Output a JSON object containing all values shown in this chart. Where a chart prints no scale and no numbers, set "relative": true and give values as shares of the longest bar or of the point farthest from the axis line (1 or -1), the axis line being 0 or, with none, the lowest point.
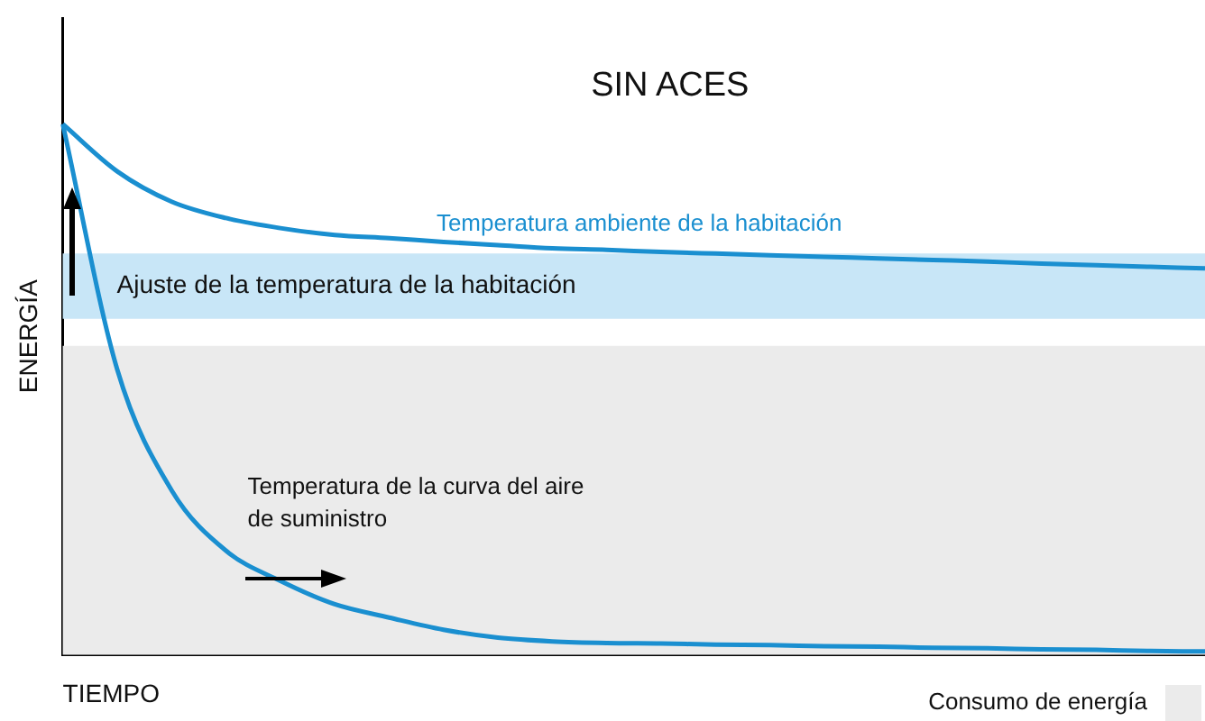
{
  "chart_data": {
    "type": "line",
    "title": "SIN ACES",
    "xlabel": "TIEMPO",
    "ylabel": "ENERGÍA",
    "relative": true,
    "legend": "bottom right",
    "marker": "none",
    "line_style": "solid",
    "grid": false,
    "categories": [
      null,
      null,
      null,
      null,
      null,
      null,
      null,
      null,
      null,
      null,
      null,
      null,
      null,
      null,
      null,
      null,
      null,
      null,
      null,
      null,
      null,
      null
    ],
    "series": [
      {
        "name": "Temperatura ambiente de la habitación",
        "color": "#1a8fd0",
        "values": [
          1.0,
          0.911,
          0.854,
          0.823,
          0.804,
          0.791,
          0.785,
          0.778,
          0.772,
          0.766,
          0.763,
          0.759,
          0.756,
          0.753,
          0.75,
          0.747,
          0.744,
          0.741,
          0.737,
          0.734,
          0.731,
          0.728
        ]
      },
      {
        "name": "Temperatura de la curva del aire de suministro",
        "color": "#1a8fd0",
        "values": [
          1.0,
          0.538,
          0.31,
          0.196,
          0.139,
          0.095,
          0.07,
          0.047,
          0.032,
          0.025,
          0.022,
          0.021,
          0.019,
          0.018,
          0.016,
          0.015,
          0.013,
          0.012,
          0.01,
          0.009,
          0.007,
          0.006
        ]
      }
    ],
    "bands": [
      {
        "axis": "y",
        "from": 0.633,
        "to": 0.756,
        "label": "Ajuste de la temperatura de la habitación",
        "color": "#c8e6f7"
      },
      {
        "axis": "y",
        "from": 0,
        "to": 0.582,
        "label": "Consumo de energía",
        "color": "#ebebeb"
      }
    ]
  }
}
